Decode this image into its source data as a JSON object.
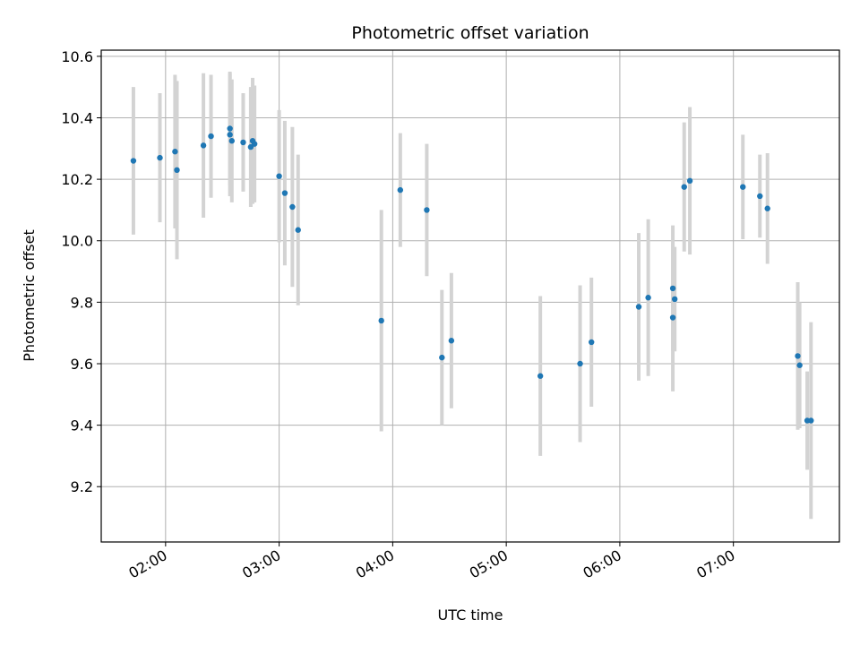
{
  "chart_data": {
    "type": "scatter",
    "title": "Photometric offset variation",
    "xlabel": "UTC time",
    "ylabel": "Photometric offset",
    "grid": true,
    "xlim": [
      "01:26",
      "07:56"
    ],
    "ylim": [
      9.02,
      10.62
    ],
    "x_ticks": [
      "02:00",
      "03:00",
      "04:00",
      "05:00",
      "06:00",
      "07:00"
    ],
    "y_ticks": [
      "9.2",
      "9.4",
      "9.6",
      "9.8",
      "10.0",
      "10.2",
      "10.4",
      "10.6"
    ],
    "colors": {
      "point": "#1f77b4",
      "errorbar": "#d3d3d3",
      "grid": "#b0b0b0"
    },
    "points": [
      {
        "x": "01:43",
        "y": 10.26,
        "err": 0.24
      },
      {
        "x": "01:57",
        "y": 10.27,
        "err": 0.21
      },
      {
        "x": "02:05",
        "y": 10.29,
        "err": 0.25
      },
      {
        "x": "02:06",
        "y": 10.23,
        "err": 0.29
      },
      {
        "x": "02:20",
        "y": 10.31,
        "err": 0.235
      },
      {
        "x": "02:24",
        "y": 10.34,
        "err": 0.2
      },
      {
        "x": "02:34",
        "y": 10.365,
        "err": 0.185
      },
      {
        "x": "02:34",
        "y": 10.345,
        "err": 0.2
      },
      {
        "x": "02:35",
        "y": 10.325,
        "err": 0.2
      },
      {
        "x": "02:41",
        "y": 10.32,
        "err": 0.16
      },
      {
        "x": "02:45",
        "y": 10.305,
        "err": 0.195
      },
      {
        "x": "02:46",
        "y": 10.325,
        "err": 0.205
      },
      {
        "x": "02:47",
        "y": 10.315,
        "err": 0.19
      },
      {
        "x": "03:00",
        "y": 10.21,
        "err": 0.215
      },
      {
        "x": "03:03",
        "y": 10.155,
        "err": 0.235
      },
      {
        "x": "03:07",
        "y": 10.11,
        "err": 0.26
      },
      {
        "x": "03:10",
        "y": 10.035,
        "err": 0.245
      },
      {
        "x": "03:54",
        "y": 9.74,
        "err": 0.36
      },
      {
        "x": "04:04",
        "y": 10.165,
        "err": 0.185
      },
      {
        "x": "04:18",
        "y": 10.1,
        "err": 0.215
      },
      {
        "x": "04:26",
        "y": 9.62,
        "err": 0.22
      },
      {
        "x": "04:31",
        "y": 9.675,
        "err": 0.22
      },
      {
        "x": "05:18",
        "y": 9.56,
        "err": 0.26
      },
      {
        "x": "05:39",
        "y": 9.6,
        "err": 0.255
      },
      {
        "x": "05:45",
        "y": 9.67,
        "err": 0.21
      },
      {
        "x": "06:10",
        "y": 9.785,
        "err": 0.24
      },
      {
        "x": "06:15",
        "y": 9.815,
        "err": 0.255
      },
      {
        "x": "06:28",
        "y": 9.845,
        "err": 0.205
      },
      {
        "x": "06:28",
        "y": 9.75,
        "err": 0.24
      },
      {
        "x": "06:29",
        "y": 9.81,
        "err": 0.17
      },
      {
        "x": "06:34",
        "y": 10.175,
        "err": 0.21
      },
      {
        "x": "06:37",
        "y": 10.195,
        "err": 0.24
      },
      {
        "x": "07:05",
        "y": 10.175,
        "err": 0.17
      },
      {
        "x": "07:14",
        "y": 10.145,
        "err": 0.135
      },
      {
        "x": "07:18",
        "y": 10.105,
        "err": 0.18
      },
      {
        "x": "07:34",
        "y": 9.625,
        "err": 0.24
      },
      {
        "x": "07:35",
        "y": 9.595,
        "err": 0.205
      },
      {
        "x": "07:39",
        "y": 9.415,
        "err": 0.16
      },
      {
        "x": "07:41",
        "y": 9.415,
        "err": 0.32
      }
    ]
  }
}
